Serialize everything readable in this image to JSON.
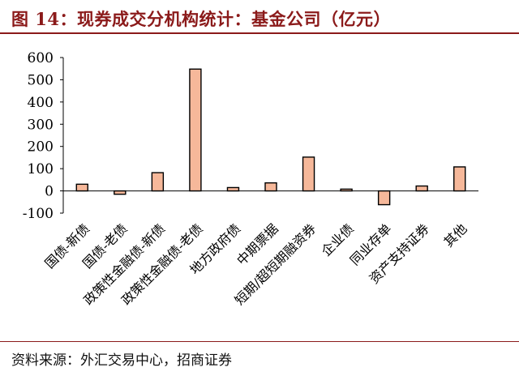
{
  "header": {
    "title": "图 14：现券成交分机构统计：基金公司（亿元）"
  },
  "footer": {
    "source": "资料来源：外汇交易中心，招商证券"
  },
  "colors": {
    "title": "#8b1a1a",
    "bar_fill": "#f6b89a",
    "bar_stroke": "#000000"
  },
  "chart_data": {
    "type": "bar",
    "categories": [
      "国债-新债",
      "国债-老债",
      "政策性金融债-新债",
      "政策性金融债-老债",
      "地方政府债",
      "中期票据",
      "短期/超短期融资券",
      "企业债",
      "同业存单",
      "资产支持证券",
      "其他"
    ],
    "values": [
      30,
      -15,
      82,
      548,
      15,
      36,
      152,
      8,
      -62,
      22,
      108
    ],
    "title": "",
    "xlabel": "",
    "ylabel": "",
    "ylim": [
      -100,
      600
    ],
    "yticks": [
      -100,
      0,
      100,
      200,
      300,
      400,
      500,
      600
    ],
    "ytick_labels": [
      "-100",
      "0",
      "100",
      "200",
      "300",
      "400",
      "500",
      "600"
    ],
    "grid": false,
    "legend": "none"
  }
}
